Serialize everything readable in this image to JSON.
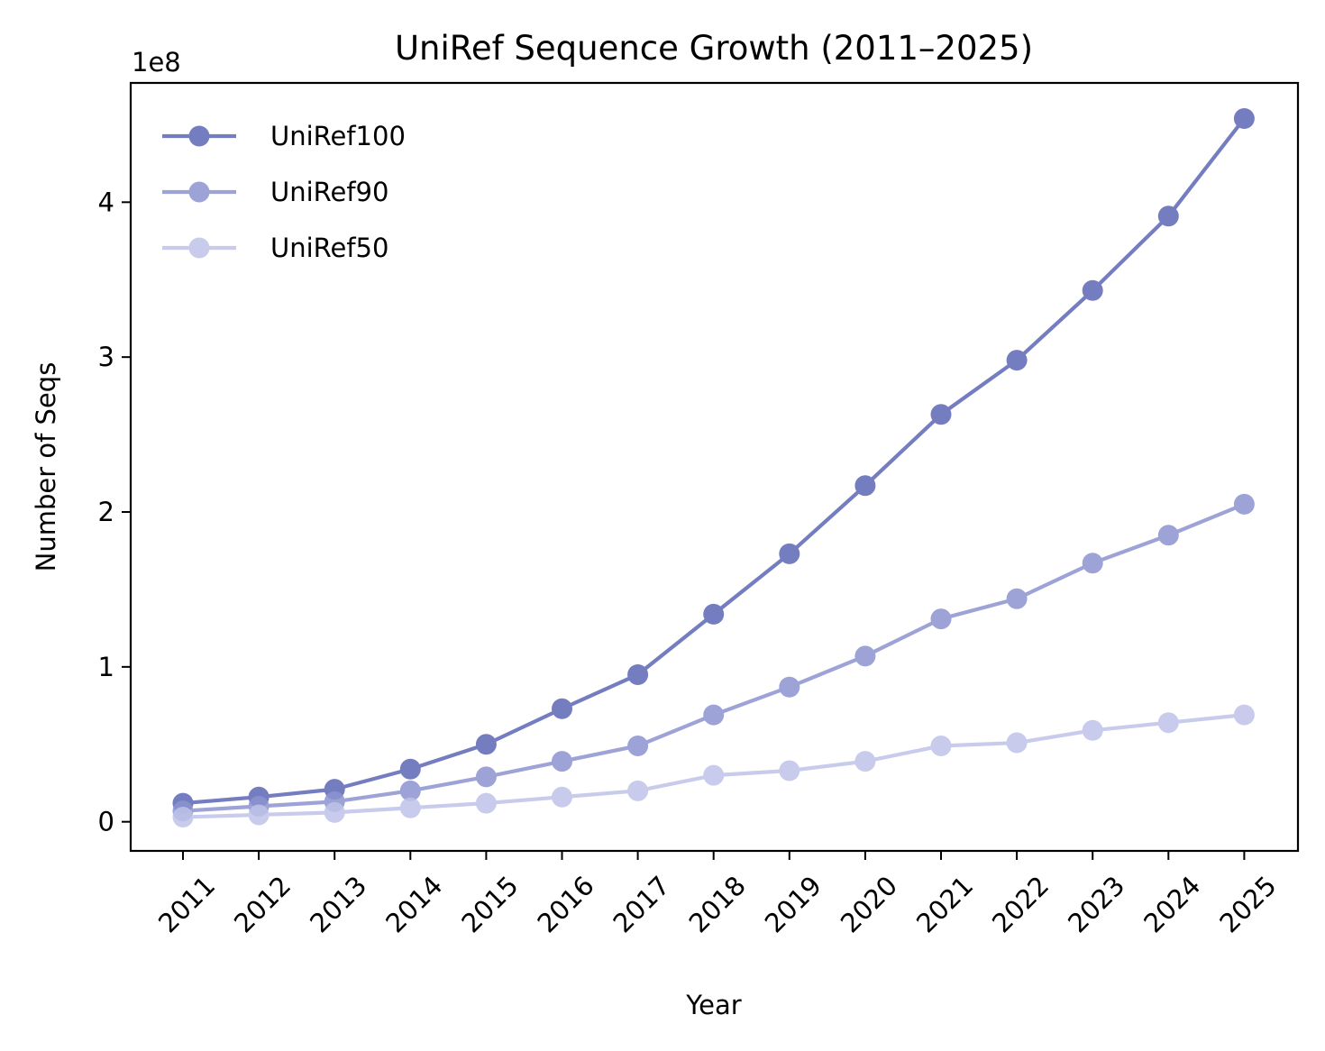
{
  "chart_data": {
    "type": "line",
    "title": "UniRef Sequence Growth (2011–2025)",
    "xlabel": "Year",
    "ylabel": "Number of Seqs",
    "y_offset_label": "1e8",
    "categories": [
      "2011",
      "2012",
      "2013",
      "2014",
      "2015",
      "2016",
      "2017",
      "2018",
      "2019",
      "2020",
      "2021",
      "2022",
      "2023",
      "2024",
      "2025"
    ],
    "y_ticks": [
      0,
      1,
      2,
      3,
      4
    ],
    "y_scale": 100000000,
    "ylim": [
      -18800000,
      477000000
    ],
    "legend_position": "top-left",
    "grid": false,
    "series": [
      {
        "name": "UniRef100",
        "color": "#5c67b5",
        "opacity": 0.85,
        "values": [
          12000000,
          16000000,
          21000000,
          34000000,
          50000000,
          73000000,
          95000000,
          134000000,
          173000000,
          217000000,
          263000000,
          298000000,
          343000000,
          391000000,
          454000000
        ]
      },
      {
        "name": "UniRef90",
        "color": "#8c94d0",
        "opacity": 0.85,
        "values": [
          7000000,
          10000000,
          13000000,
          20000000,
          29000000,
          39000000,
          49000000,
          69000000,
          87000000,
          107000000,
          131000000,
          144000000,
          167000000,
          185000000,
          205000000
        ]
      },
      {
        "name": "UniRef50",
        "color": "#bfc3e8",
        "opacity": 0.85,
        "values": [
          3000000,
          4500000,
          6000000,
          9000000,
          12000000,
          16000000,
          20000000,
          30000000,
          33000000,
          39000000,
          49000000,
          51000000,
          59000000,
          64000000,
          69000000
        ]
      }
    ]
  }
}
